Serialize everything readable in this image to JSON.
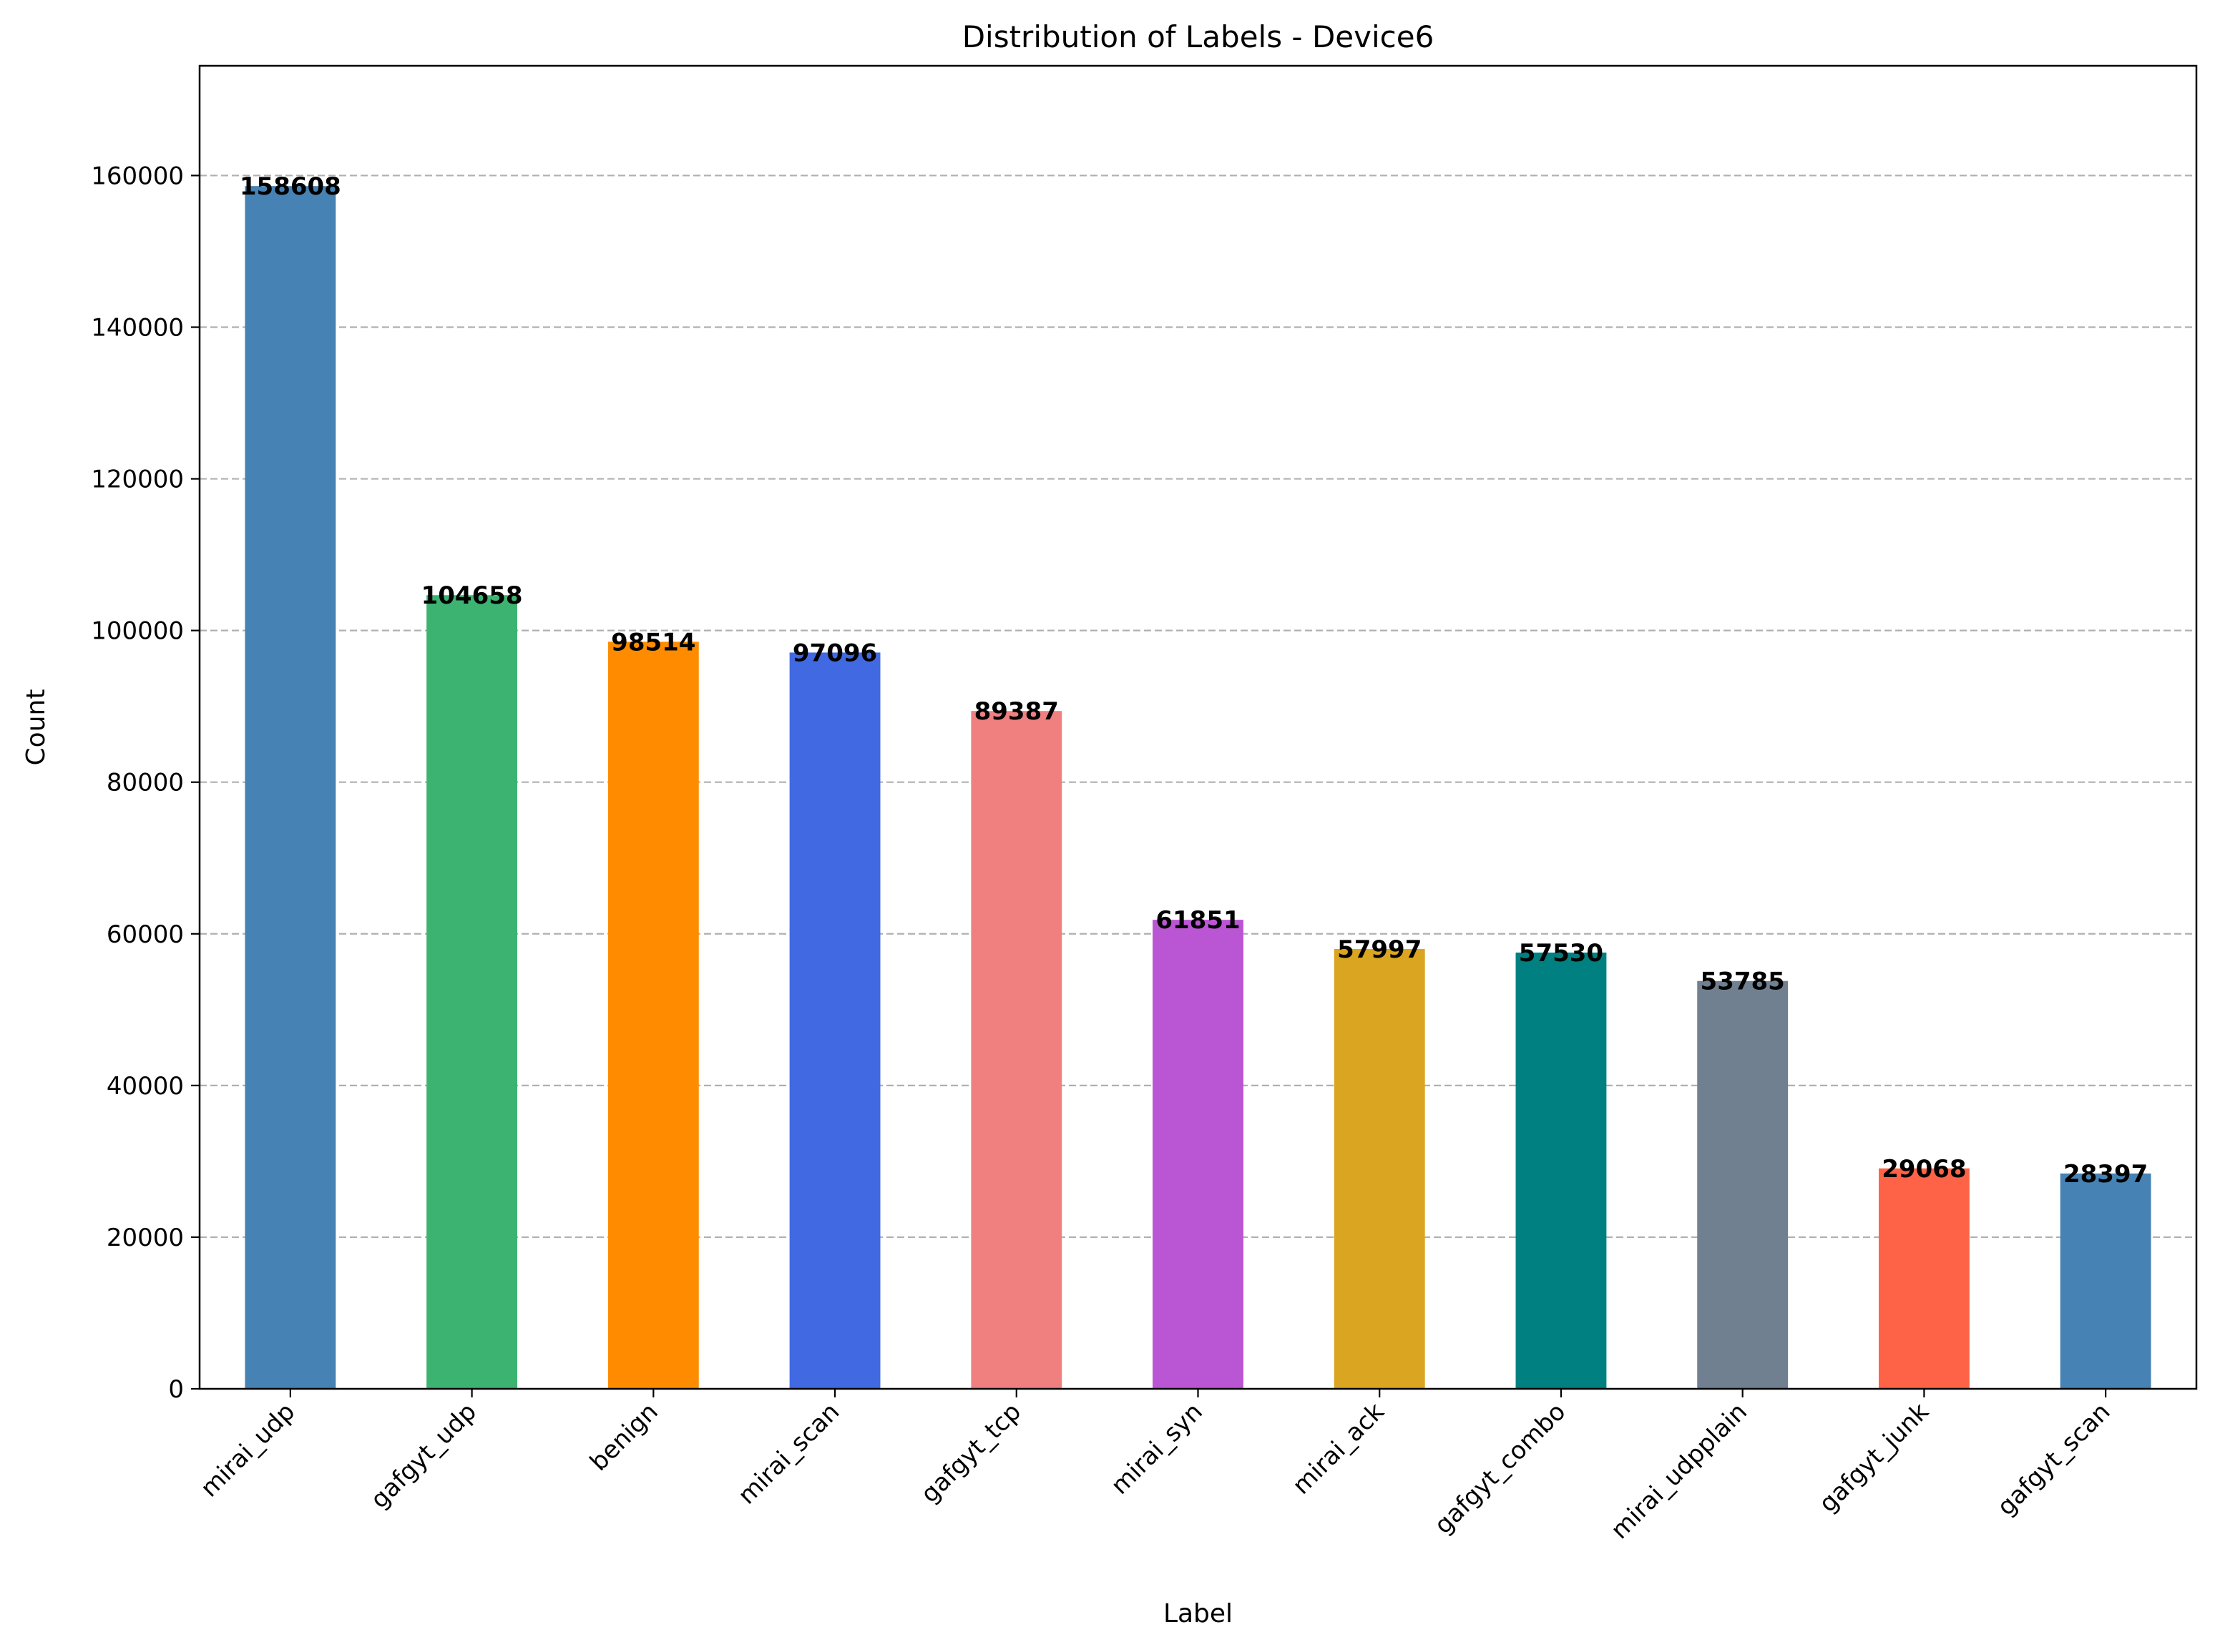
{
  "chart_data": {
    "type": "bar",
    "title": "Distribution of Labels - Device6",
    "xlabel": "Label",
    "ylabel": "Count",
    "categories": [
      "mirai_udp",
      "gafgyt_udp",
      "benign",
      "mirai_scan",
      "gafgyt_tcp",
      "mirai_syn",
      "mirai_ack",
      "gafgyt_combo",
      "mirai_udpplain",
      "gafgyt_junk",
      "gafgyt_scan"
    ],
    "values": [
      158608,
      104658,
      98514,
      97096,
      89387,
      61851,
      57997,
      57530,
      53785,
      29068,
      28397
    ],
    "colors": [
      "#4682b4",
      "#3cb371",
      "#ff8c00",
      "#4169e1",
      "#f08080",
      "#ba55d3",
      "#daa520",
      "#008080",
      "#708090",
      "#ff6347",
      "#4682b4"
    ],
    "ylim": [
      0,
      174469
    ],
    "yticks": [
      0,
      20000,
      40000,
      60000,
      80000,
      100000,
      120000,
      140000,
      160000
    ],
    "grid": "y-dashed",
    "legend": "none",
    "data_labels": true
  }
}
